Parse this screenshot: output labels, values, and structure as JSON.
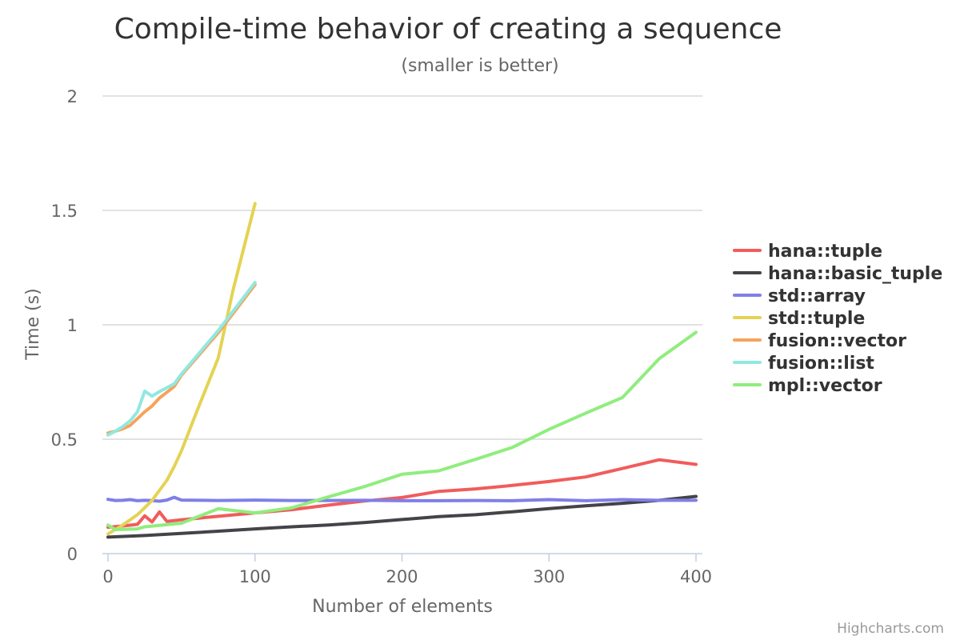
{
  "chart_data": {
    "type": "line",
    "title": "Compile-time behavior of creating a sequence",
    "subtitle": "(smaller is better)",
    "xlabel": "Number of elements",
    "ylabel": "Time (s)",
    "xlim": [
      0,
      400
    ],
    "ylim": [
      0,
      2
    ],
    "x_ticks": [
      0,
      100,
      200,
      300,
      400
    ],
    "y_ticks": [
      0,
      0.5,
      1,
      1.5,
      2
    ],
    "x_tick_labels": [
      "0",
      "100",
      "200",
      "300",
      "400"
    ],
    "y_tick_labels": [
      "0",
      "0.5",
      "1",
      "1.5",
      "2"
    ],
    "grid": true,
    "legend_position": "right",
    "series": [
      {
        "name": "hana::tuple",
        "color": "#f15c5c",
        "points": [
          [
            0,
            0.115
          ],
          [
            5,
            0.118
          ],
          [
            10,
            0.121
          ],
          [
            15,
            0.124
          ],
          [
            20,
            0.128
          ],
          [
            25,
            0.165
          ],
          [
            30,
            0.138
          ],
          [
            35,
            0.182
          ],
          [
            40,
            0.141
          ],
          [
            45,
            0.144
          ],
          [
            50,
            0.148
          ],
          [
            75,
            0.163
          ],
          [
            100,
            0.178
          ],
          [
            125,
            0.192
          ],
          [
            150,
            0.212
          ],
          [
            175,
            0.23
          ],
          [
            200,
            0.245
          ],
          [
            225,
            0.272
          ],
          [
            250,
            0.283
          ],
          [
            275,
            0.298
          ],
          [
            300,
            0.315
          ],
          [
            325,
            0.335
          ],
          [
            350,
            0.372
          ],
          [
            375,
            0.41
          ],
          [
            400,
            0.39
          ]
        ]
      },
      {
        "name": "hana::basic_tuple",
        "color": "#434348",
        "points": [
          [
            0,
            0.072
          ],
          [
            25,
            0.079
          ],
          [
            50,
            0.088
          ],
          [
            75,
            0.098
          ],
          [
            100,
            0.108
          ],
          [
            125,
            0.117
          ],
          [
            150,
            0.125
          ],
          [
            175,
            0.136
          ],
          [
            200,
            0.149
          ],
          [
            225,
            0.162
          ],
          [
            250,
            0.17
          ],
          [
            275,
            0.183
          ],
          [
            300,
            0.197
          ],
          [
            325,
            0.209
          ],
          [
            350,
            0.22
          ],
          [
            375,
            0.233
          ],
          [
            400,
            0.25
          ]
        ]
      },
      {
        "name": "std::array",
        "color": "#7f7fe8",
        "points": [
          [
            0,
            0.237
          ],
          [
            5,
            0.232
          ],
          [
            10,
            0.233
          ],
          [
            15,
            0.236
          ],
          [
            20,
            0.231
          ],
          [
            25,
            0.233
          ],
          [
            30,
            0.232
          ],
          [
            35,
            0.229
          ],
          [
            40,
            0.234
          ],
          [
            45,
            0.246
          ],
          [
            50,
            0.234
          ],
          [
            75,
            0.232
          ],
          [
            100,
            0.234
          ],
          [
            125,
            0.232
          ],
          [
            150,
            0.232
          ],
          [
            175,
            0.233
          ],
          [
            200,
            0.231
          ],
          [
            225,
            0.231
          ],
          [
            250,
            0.232
          ],
          [
            275,
            0.231
          ],
          [
            300,
            0.236
          ],
          [
            325,
            0.231
          ],
          [
            350,
            0.236
          ],
          [
            375,
            0.233
          ],
          [
            400,
            0.233
          ]
        ]
      },
      {
        "name": "std::tuple",
        "color": "#e4d354",
        "points": [
          [
            0,
            0.086
          ],
          [
            10,
            0.125
          ],
          [
            20,
            0.17
          ],
          [
            30,
            0.232
          ],
          [
            40,
            0.32
          ],
          [
            45,
            0.38
          ],
          [
            50,
            0.45
          ],
          [
            60,
            0.615
          ],
          [
            75,
            0.855
          ],
          [
            85,
            1.15
          ],
          [
            100,
            1.53
          ]
        ]
      },
      {
        "name": "fusion::vector",
        "color": "#f7a35c",
        "points": [
          [
            0,
            0.527
          ],
          [
            5,
            0.535
          ],
          [
            10,
            0.545
          ],
          [
            15,
            0.56
          ],
          [
            20,
            0.59
          ],
          [
            25,
            0.62
          ],
          [
            30,
            0.645
          ],
          [
            35,
            0.68
          ],
          [
            40,
            0.705
          ],
          [
            45,
            0.73
          ],
          [
            50,
            0.78
          ],
          [
            75,
            0.965
          ],
          [
            100,
            1.175
          ]
        ]
      },
      {
        "name": "fusion::list",
        "color": "#91e8e1",
        "points": [
          [
            0,
            0.518
          ],
          [
            5,
            0.535
          ],
          [
            10,
            0.555
          ],
          [
            15,
            0.58
          ],
          [
            20,
            0.62
          ],
          [
            25,
            0.71
          ],
          [
            30,
            0.688
          ],
          [
            35,
            0.708
          ],
          [
            40,
            0.725
          ],
          [
            45,
            0.742
          ],
          [
            50,
            0.785
          ],
          [
            75,
            0.975
          ],
          [
            100,
            1.185
          ]
        ]
      },
      {
        "name": "mpl::vector",
        "color": "#90ed7d",
        "points": [
          [
            0,
            0.125
          ],
          [
            5,
            0.105
          ],
          [
            10,
            0.106
          ],
          [
            20,
            0.108
          ],
          [
            25,
            0.117
          ],
          [
            50,
            0.133
          ],
          [
            75,
            0.196
          ],
          [
            100,
            0.178
          ],
          [
            125,
            0.2
          ],
          [
            150,
            0.248
          ],
          [
            175,
            0.294
          ],
          [
            200,
            0.347
          ],
          [
            225,
            0.362
          ],
          [
            250,
            0.412
          ],
          [
            275,
            0.464
          ],
          [
            300,
            0.543
          ],
          [
            325,
            0.614
          ],
          [
            350,
            0.682
          ],
          [
            375,
            0.852
          ],
          [
            400,
            0.967
          ]
        ]
      }
    ]
  },
  "credits": "Highcharts.com"
}
